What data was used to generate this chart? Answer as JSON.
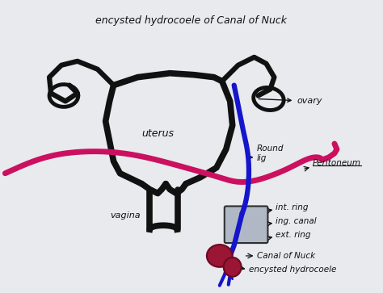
{
  "title": "encysted hydrocoele of Canal of Nuck",
  "bg_color": "#e8eaed",
  "anatomy_color": "#111111",
  "peritoneum_color": "#cc1060",
  "blue_lig_color": "#1515cc",
  "label_texts": {
    "uterus": "uterus",
    "vagina": "vagina",
    "ovary": "ovary",
    "round_lig": "Round\nlig",
    "peritoneum": "Peritoneum",
    "int_ring": "int. ring",
    "ing_canal": "ing. canal",
    "ext_ring": "ext. ring",
    "canal_of_nuck": "Canal of Nuck",
    "encysted_hydrocoele": "encysted hydrocoele"
  }
}
